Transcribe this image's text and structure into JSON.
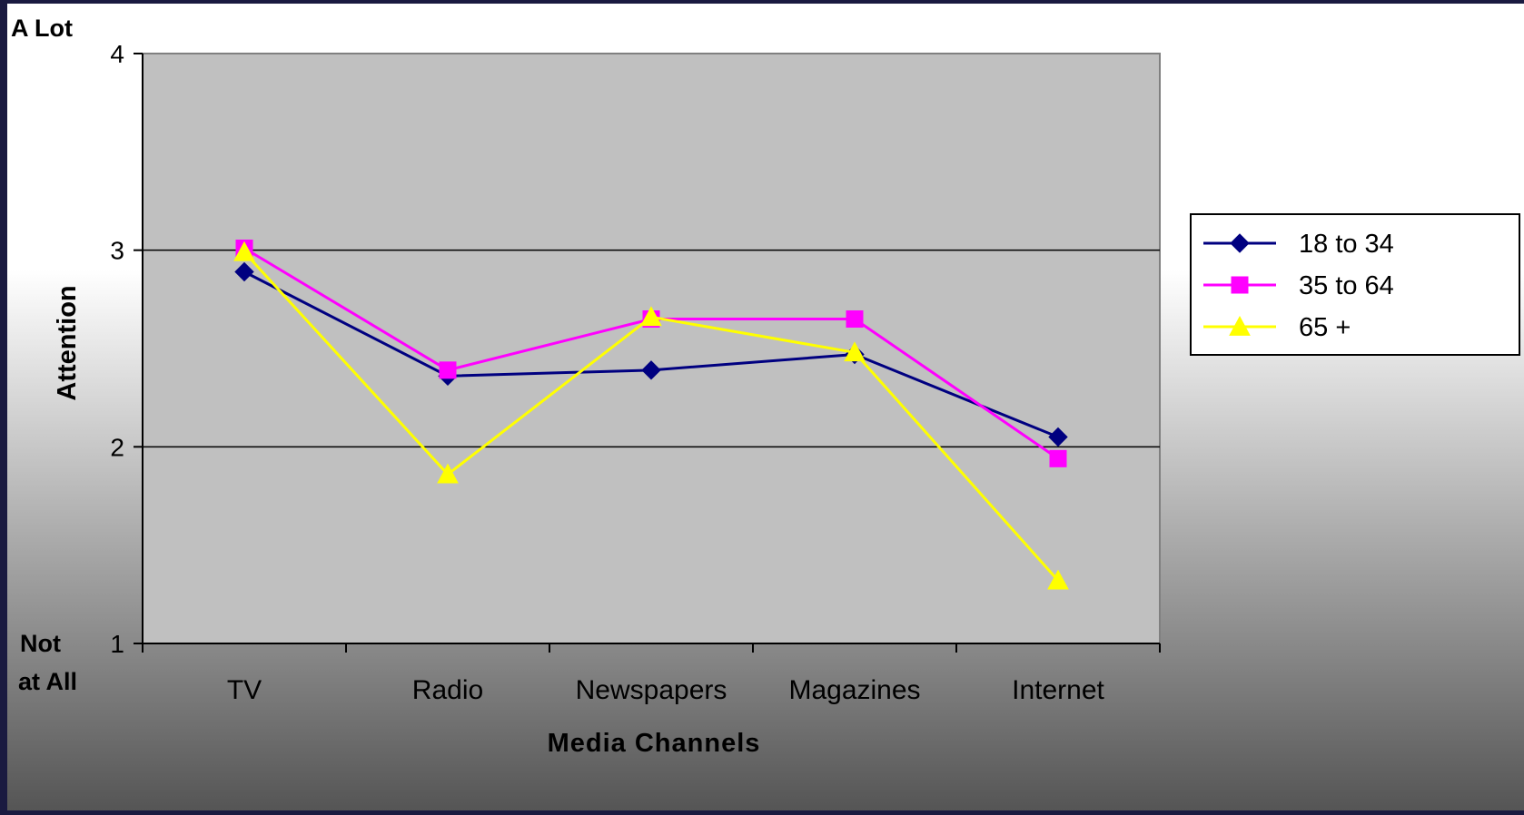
{
  "chart_data": {
    "type": "line",
    "title": "",
    "xlabel": "Media Channels",
    "ylabel": "Attention",
    "y_top_label": "A Lot",
    "y_bottom_label_line1": "Not",
    "y_bottom_label_line2": "at All",
    "categories": [
      "TV",
      "Radio",
      "Newspapers",
      "Magazines",
      "Internet"
    ],
    "ylim": [
      1,
      4
    ],
    "yticks": [
      "1",
      "2",
      "3",
      "4"
    ],
    "grid": true,
    "legend_position": "right",
    "series": [
      {
        "name": "18 to 34",
        "values": [
          2.89,
          2.36,
          2.39,
          2.47,
          2.05
        ],
        "color": "#000080",
        "marker": "diamond"
      },
      {
        "name": "35 to 64",
        "values": [
          3.01,
          2.39,
          2.65,
          2.65,
          1.94
        ],
        "color": "#ff00ff",
        "marker": "square"
      },
      {
        "name": "65 +",
        "values": [
          2.99,
          1.86,
          2.66,
          2.48,
          1.32
        ],
        "color": "#ffff00",
        "marker": "triangle"
      }
    ]
  },
  "colors": {
    "plot_background": "#c0c0c0",
    "gradient_top": "#ffffff",
    "gradient_bottom": "#555555",
    "frame": "#1a1a40",
    "axis": "#000000",
    "grid": "#000000"
  }
}
